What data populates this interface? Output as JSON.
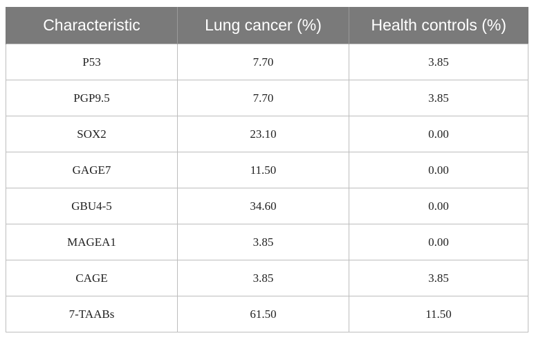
{
  "table": {
    "headers": [
      "Characteristic",
      "Lung cancer (%)",
      "Health controls (%)"
    ],
    "rows": [
      [
        "P53",
        "7.70",
        "3.85"
      ],
      [
        "PGP9.5",
        "7.70",
        "3.85"
      ],
      [
        "SOX2",
        "23.10",
        "0.00"
      ],
      [
        "GAGE7",
        "11.50",
        "0.00"
      ],
      [
        "GBU4-5",
        "34.60",
        "0.00"
      ],
      [
        "MAGEA1",
        "3.85",
        "0.00"
      ],
      [
        "CAGE",
        "3.85",
        "3.85"
      ],
      [
        "7-TAABs",
        "61.50",
        "11.50"
      ]
    ]
  }
}
